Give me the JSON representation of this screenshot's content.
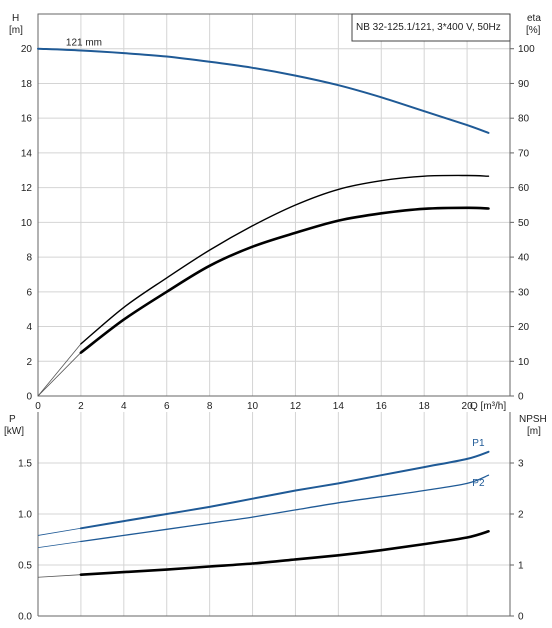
{
  "chart_data": [
    {
      "type": "line",
      "title": "NB 32-125.1/121, 3*400 V, 50Hz",
      "xlabel": "Q [m³/h]",
      "xlim": [
        0,
        22
      ],
      "x_ticks": [
        0,
        2,
        4,
        6,
        8,
        10,
        12,
        14,
        16,
        18,
        20
      ],
      "y_left": {
        "label_line1": "H",
        "label_line2": "[m]",
        "lim": [
          0,
          22
        ],
        "ticks": [
          0,
          2,
          4,
          6,
          8,
          10,
          12,
          14,
          16,
          18,
          20
        ]
      },
      "y_right": {
        "label_line1": "eta",
        "label_line2": "[%]",
        "lim": [
          0,
          110
        ],
        "ticks": [
          0,
          10,
          20,
          30,
          40,
          50,
          60,
          70,
          80,
          90,
          100
        ]
      },
      "grid": true,
      "series": [
        {
          "name": "121 mm",
          "axis": "left",
          "color": "#1f5a96",
          "x": [
            0,
            2,
            4,
            6,
            8,
            10,
            12,
            14,
            16,
            18,
            20,
            21
          ],
          "y": [
            20,
            19.9,
            19.75,
            19.55,
            19.25,
            18.9,
            18.45,
            17.9,
            17.2,
            16.4,
            15.6,
            15.15
          ]
        },
        {
          "axis": "right",
          "color": "#000000",
          "x": [
            2,
            4,
            6,
            8,
            10,
            12,
            14,
            16,
            18,
            20,
            21
          ],
          "y": [
            12.5,
            22,
            30,
            37.5,
            43,
            47,
            50.5,
            52.6,
            53.9,
            54.2,
            54.0
          ]
        },
        {
          "axis": "right",
          "color": "#000000",
          "x": [
            2,
            4,
            6,
            8,
            10,
            12,
            14,
            16,
            18,
            20,
            21
          ],
          "y": [
            15,
            25.5,
            34,
            42,
            49,
            55,
            59.5,
            62,
            63.3,
            63.5,
            63.3
          ]
        }
      ]
    },
    {
      "type": "line",
      "xlim": [
        0,
        22
      ],
      "x_ticks": [
        0,
        2,
        4,
        6,
        8,
        10,
        12,
        14,
        16,
        18,
        20
      ],
      "y_left": {
        "label_line1": "P",
        "label_line2": "[kW]",
        "lim": [
          0,
          2.0
        ],
        "ticks": [
          0.0,
          0.5,
          1.0,
          1.5
        ]
      },
      "y_right": {
        "label_line1": "NPSH",
        "label_line2": "[m]",
        "lim": [
          0,
          4
        ],
        "ticks": [
          0,
          1,
          2,
          3
        ]
      },
      "grid": true,
      "series": [
        {
          "name": "P1",
          "axis": "left",
          "color": "#1f5a96",
          "x": [
            2,
            4,
            6,
            8,
            10,
            12,
            14,
            16,
            18,
            20,
            21
          ],
          "y": [
            0.86,
            0.93,
            1.0,
            1.07,
            1.15,
            1.23,
            1.3,
            1.38,
            1.46,
            1.54,
            1.61
          ]
        },
        {
          "name": "P2",
          "axis": "left",
          "color": "#1f5a96",
          "x": [
            2,
            4,
            6,
            8,
            10,
            12,
            14,
            16,
            18,
            20,
            21
          ],
          "y": [
            0.73,
            0.79,
            0.85,
            0.91,
            0.97,
            1.04,
            1.11,
            1.17,
            1.23,
            1.3,
            1.38
          ]
        },
        {
          "axis": "right",
          "color": "#000000",
          "x": [
            2,
            4,
            6,
            8,
            10,
            12,
            14,
            16,
            18,
            20,
            21
          ],
          "y": [
            0.81,
            0.86,
            0.91,
            0.97,
            1.03,
            1.11,
            1.19,
            1.29,
            1.41,
            1.54,
            1.66
          ]
        }
      ]
    }
  ]
}
